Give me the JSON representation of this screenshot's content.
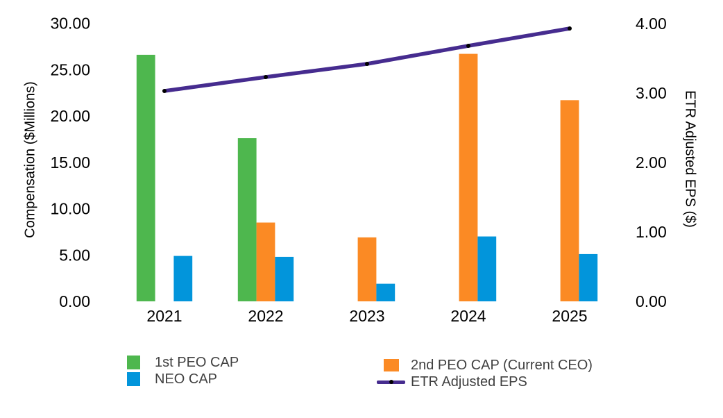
{
  "chart_data": {
    "type": "combo-bar-line",
    "categories": [
      "2021",
      "2022",
      "2023",
      "2024",
      "2025"
    ],
    "bar_series": [
      {
        "name": "1st PEO CAP",
        "color": "#4EB74E",
        "values": [
          26.6,
          17.6,
          null,
          null,
          null
        ]
      },
      {
        "name": "2nd PEO CAP (Current CEO)",
        "color": "#FB8A24",
        "values": [
          null,
          8.5,
          6.9,
          26.7,
          21.7
        ]
      },
      {
        "name": "NEO CAP",
        "color": "#0295DB",
        "values": [
          4.9,
          4.8,
          1.9,
          7.0,
          5.1
        ]
      }
    ],
    "line_series": {
      "name": "ETR Adjusted EPS",
      "color": "#462C8F",
      "marker_color": "#000000",
      "values": [
        3.03,
        3.23,
        3.42,
        3.68,
        3.93
      ]
    },
    "axes": {
      "left": {
        "title": "Compensation ($Millions)",
        "min": 0,
        "max": 30,
        "tick_values": [
          0,
          5,
          10,
          15,
          20,
          25,
          30
        ],
        "tick_labels": [
          "0.00",
          "5.00",
          "10.00",
          "15.00",
          "20.00",
          "25.00",
          "30.00"
        ]
      },
      "right": {
        "title": "ETR Adjusted EPS ($)",
        "min": 0,
        "max": 4,
        "tick_values": [
          0,
          1,
          2,
          3,
          4
        ],
        "tick_labels": [
          "0.00",
          "1.00",
          "2.00",
          "3.00",
          "4.00"
        ]
      }
    },
    "legend": {
      "position": "bottom",
      "items": [
        {
          "label": "1st PEO CAP",
          "color": "#4EB74E",
          "type": "bar"
        },
        {
          "label": "NEO CAP",
          "color": "#0295DB",
          "type": "bar"
        },
        {
          "label": "2nd PEO CAP (Current CEO)",
          "color": "#FB8A24",
          "type": "bar"
        },
        {
          "label": "ETR Adjusted EPS",
          "color": "#462C8F",
          "type": "line"
        }
      ]
    },
    "grid": false,
    "background": "#FFFFFF"
  }
}
